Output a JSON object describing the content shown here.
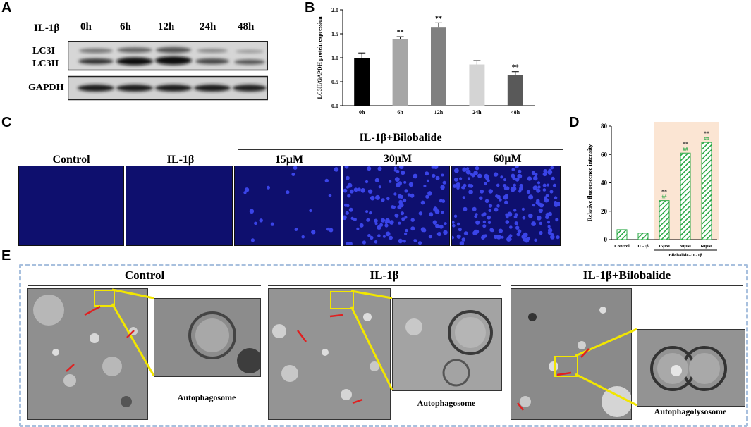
{
  "panel_labels": {
    "a": "A",
    "b": "B",
    "c": "C",
    "d": "D",
    "e": "E"
  },
  "blot": {
    "treatment_label": "IL-1β",
    "timepoints": [
      "0h",
      "6h",
      "12h",
      "24h",
      "48h"
    ],
    "row_labels": [
      "LC3I",
      "LC3II"
    ],
    "control_label": "GAPDH"
  },
  "fluorescence": {
    "group_label": "IL-1β+Bilobalide",
    "panels": [
      "Control",
      "IL-1β",
      "15μM",
      "30μM",
      "60μM"
    ],
    "panel_density": [
      0,
      0,
      0.12,
      0.7,
      1.0
    ]
  },
  "em": {
    "groups": [
      {
        "title": "Control",
        "caption": "Autophagosome"
      },
      {
        "title": "IL-1β",
        "caption": "Autophagosome"
      },
      {
        "title": "IL-1β+Bilobalide",
        "caption": "Autophagolysosome"
      }
    ]
  },
  "chart_data": [
    {
      "type": "bar",
      "panel": "B",
      "categories": [
        "0h",
        "6h",
        "12h",
        "24h",
        "48h"
      ],
      "values": [
        1.0,
        1.39,
        1.63,
        0.86,
        0.64
      ],
      "errors": [
        0.1,
        0.05,
        0.1,
        0.08,
        0.07
      ],
      "significance": [
        "",
        "**",
        "**",
        "",
        "**"
      ],
      "colors": [
        "#000000",
        "#a6a6a6",
        "#808080",
        "#d4d4d4",
        "#595959"
      ],
      "ylabel": "LC3II/GAPDH protein expression",
      "ylim": [
        0,
        2.0
      ],
      "yticks": [
        "0.0",
        "0.5",
        "1.0",
        "1.5",
        "2.0"
      ]
    },
    {
      "type": "bar",
      "panel": "D",
      "categories": [
        "Control",
        "IL-1β",
        "15μM",
        "30μM",
        "60μM"
      ],
      "values": [
        7,
        4.5,
        27.5,
        61,
        68.5
      ],
      "significance_top": [
        "",
        "",
        "**",
        "**",
        "**"
      ],
      "significance_bottom": [
        "",
        "",
        "##",
        "##",
        "##"
      ],
      "group_label": "Bilobalide+IL-1β",
      "ylabel": "Relative fluorescence intensity",
      "ylim": [
        0,
        80
      ],
      "yticks": [
        "0",
        "20",
        "40",
        "60",
        "80"
      ],
      "highlight_color": "#fbe5d3",
      "bar_color": "#2aa845"
    }
  ]
}
